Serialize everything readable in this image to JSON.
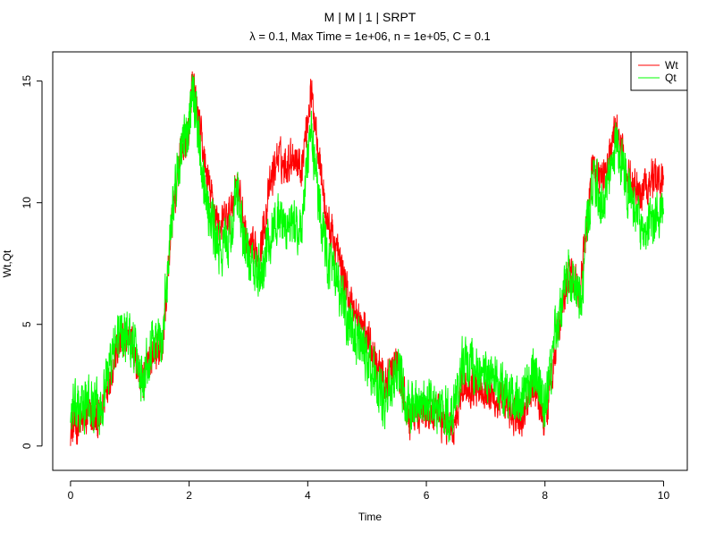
{
  "chart_data": {
    "type": "line",
    "title": "M | M | 1 | SRPT",
    "subtitle": "λ = 0.1, Max Time = 1e+06, n = 1e+05, C = 0.1",
    "xlabel": "Time",
    "ylabel": "Wt,Qt",
    "xlim": [
      -0.3,
      10.4
    ],
    "ylim": [
      -1.0,
      16.2
    ],
    "x_ticks": [
      0,
      2,
      4,
      6,
      8,
      10
    ],
    "y_ticks": [
      0,
      5,
      10,
      15
    ],
    "grid": false,
    "legend_position": "top-right",
    "series": [
      {
        "name": "Wt",
        "color": "#FF0000",
        "noise": 0.45,
        "x": [
          0,
          0.3,
          0.5,
          0.6,
          0.8,
          1.0,
          1.2,
          1.4,
          1.55,
          1.7,
          1.85,
          2.0,
          2.05,
          2.15,
          2.3,
          2.5,
          2.7,
          2.8,
          3.0,
          3.2,
          3.35,
          3.5,
          3.6,
          3.75,
          3.9,
          4.05,
          4.15,
          4.3,
          4.5,
          4.7,
          4.9,
          5.1,
          5.3,
          5.5,
          5.7,
          5.9,
          6.2,
          6.45,
          6.6,
          6.9,
          7.2,
          7.4,
          7.6,
          7.8,
          8.0,
          8.2,
          8.4,
          8.6,
          8.8,
          9.0,
          9.2,
          9.4,
          9.6,
          9.8,
          10.0
        ],
        "y": [
          0.6,
          1.2,
          1.0,
          2.4,
          4.0,
          4.6,
          2.5,
          4.0,
          4.0,
          9.0,
          12.0,
          13.0,
          15.0,
          13.5,
          11.0,
          9.0,
          9.5,
          11.0,
          8.0,
          8.0,
          10.5,
          12.0,
          11.5,
          12.0,
          11.5,
          14.5,
          13.0,
          9.5,
          8.0,
          6.0,
          5.0,
          4.0,
          2.5,
          3.5,
          1.0,
          1.5,
          1.2,
          0.6,
          2.5,
          2.5,
          1.8,
          1.5,
          1.0,
          2.5,
          1.0,
          4.5,
          7.0,
          6.5,
          11.5,
          11.0,
          13.0,
          11.0,
          10.5,
          11.0,
          11.0
        ]
      },
      {
        "name": "Qt",
        "color": "#00FF00",
        "noise": 0.6,
        "x": [
          0,
          0.3,
          0.5,
          0.6,
          0.8,
          1.0,
          1.2,
          1.4,
          1.55,
          1.7,
          1.85,
          2.0,
          2.05,
          2.15,
          2.3,
          2.5,
          2.7,
          2.8,
          3.0,
          3.2,
          3.35,
          3.5,
          3.6,
          3.75,
          3.9,
          4.05,
          4.15,
          4.3,
          4.5,
          4.7,
          4.9,
          5.1,
          5.3,
          5.5,
          5.7,
          5.9,
          6.2,
          6.45,
          6.6,
          6.9,
          7.2,
          7.4,
          7.6,
          7.8,
          8.0,
          8.2,
          8.4,
          8.6,
          8.8,
          9.0,
          9.2,
          9.4,
          9.6,
          9.8,
          10.0
        ],
        "y": [
          1.3,
          1.8,
          1.4,
          2.8,
          4.5,
          4.6,
          2.8,
          4.5,
          4.2,
          9.5,
          12.0,
          13.0,
          15.2,
          13.0,
          10.0,
          8.0,
          8.5,
          10.5,
          7.5,
          7.0,
          8.5,
          9.5,
          9.0,
          9.0,
          9.0,
          13.0,
          11.0,
          8.0,
          6.5,
          5.0,
          4.0,
          3.0,
          1.8,
          3.0,
          1.5,
          2.0,
          1.5,
          1.2,
          3.5,
          3.0,
          2.5,
          2.0,
          1.8,
          3.0,
          1.5,
          5.0,
          7.0,
          6.0,
          11.0,
          10.0,
          12.5,
          10.5,
          9.0,
          9.0,
          9.5
        ]
      }
    ]
  }
}
